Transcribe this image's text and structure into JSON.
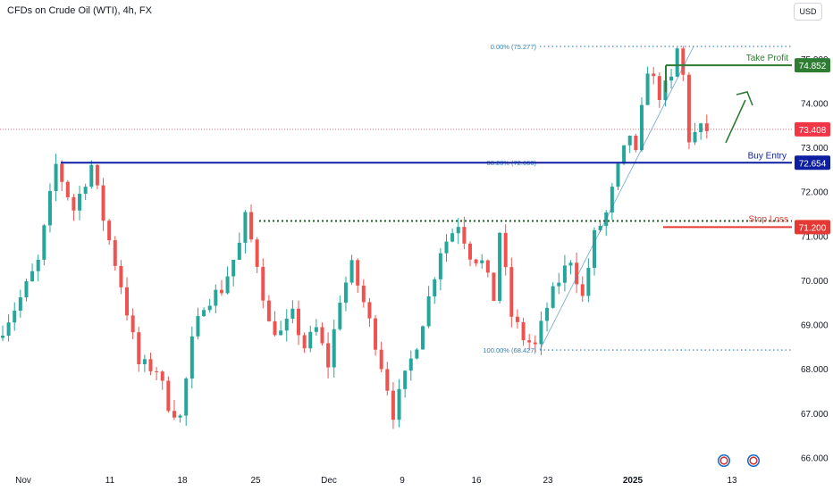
{
  "header": {
    "title": "CFDs on Crude Oil (WTI), 4h, FX",
    "currency_button": "USD"
  },
  "colors": {
    "up": "#26a69a",
    "down": "#ef5350",
    "take_profit": "#2e7d32",
    "buy_entry": "#0d1fa0",
    "stop_loss": "#e53935",
    "fib": "#2f80b7",
    "current_price": "#f23645",
    "axis_text": "#131722"
  },
  "chart_data": {
    "type": "candlestick",
    "title": "CFDs on Crude Oil (WTI), 4h, FX",
    "y_axis": {
      "ticks": [
        66.0,
        67.0,
        68.0,
        69.0,
        70.0,
        71.0,
        72.0,
        73.0,
        74.0,
        75.0
      ],
      "tick_labels": [
        "66.000",
        "67.000",
        "68.000",
        "69.000",
        "70.000",
        "71.000",
        "72.000",
        "73.000",
        "74.000",
        "75.000"
      ],
      "range": [
        65.9,
        75.4
      ]
    },
    "x_axis": {
      "tick_labels": [
        "Nov",
        "11",
        "18",
        "25",
        "Dec",
        "9",
        "16",
        "23",
        "2025",
        "13"
      ],
      "bold_label": "2025"
    },
    "price_path": [
      [
        0,
        68.7
      ],
      [
        4,
        69.6
      ],
      [
        7,
        70.4
      ],
      [
        10,
        72.6
      ],
      [
        13,
        71.6
      ],
      [
        16,
        72.6
      ],
      [
        18,
        71.4
      ],
      [
        21,
        69.9
      ],
      [
        24,
        68.1
      ],
      [
        27,
        68.0
      ],
      [
        29,
        67.2
      ],
      [
        31,
        66.9
      ],
      [
        33,
        68.6
      ],
      [
        35,
        69.5
      ],
      [
        38,
        69.8
      ],
      [
        41,
        70.8
      ],
      [
        42,
        71.4
      ],
      [
        44,
        70.4
      ],
      [
        46,
        69.0
      ],
      [
        48,
        68.8
      ],
      [
        50,
        69.2
      ],
      [
        52,
        68.5
      ],
      [
        54,
        68.9
      ],
      [
        56,
        68.1
      ],
      [
        58,
        69.6
      ],
      [
        60,
        70.3
      ],
      [
        62,
        69.5
      ],
      [
        64,
        68.6
      ],
      [
        66,
        67.6
      ],
      [
        67,
        67.0
      ],
      [
        69,
        67.8
      ],
      [
        71,
        68.6
      ],
      [
        73,
        69.6
      ],
      [
        75,
        70.7
      ],
      [
        77,
        71.1
      ],
      [
        78,
        71.3
      ],
      [
        80,
        70.6
      ],
      [
        82,
        70.4
      ],
      [
        84,
        69.6
      ],
      [
        85,
        71.1
      ],
      [
        87,
        69.2
      ],
      [
        89,
        68.7
      ],
      [
        91,
        68.5
      ],
      [
        93,
        69.4
      ],
      [
        95,
        70.0
      ],
      [
        97,
        70.5
      ],
      [
        99,
        69.6
      ],
      [
        101,
        71.0
      ],
      [
        103,
        71.5
      ],
      [
        105,
        72.5
      ],
      [
        107,
        73.3
      ],
      [
        108,
        72.8
      ],
      [
        110,
        74.8
      ],
      [
        112,
        74.2
      ],
      [
        114,
        74.5
      ],
      [
        115,
        75.2
      ],
      [
        116,
        74.6
      ],
      [
        117,
        73.2
      ],
      [
        119,
        73.4
      ]
    ],
    "candle_range": [
      0,
      119
    ],
    "levels": {
      "take_profit": {
        "label": "Take Profit",
        "price_label": "74.852",
        "value": 74.852
      },
      "buy_entry": {
        "label": "Buy Entry",
        "price_label": "72.654",
        "value": 72.654
      },
      "stop_loss": {
        "label": "Stop Loss",
        "price_label": "71.200",
        "value": 71.2
      },
      "resistance_dotted": {
        "value": 71.34
      },
      "current_price": {
        "price_label": "73.408",
        "value": 73.408
      }
    },
    "fibonacci": [
      {
        "label": "0.00% (75.277)",
        "value": 75.277
      },
      {
        "label": "38.20% (72.660)",
        "value": 72.66
      },
      {
        "label": "100.00% (68.427)",
        "value": 68.427
      }
    ]
  }
}
